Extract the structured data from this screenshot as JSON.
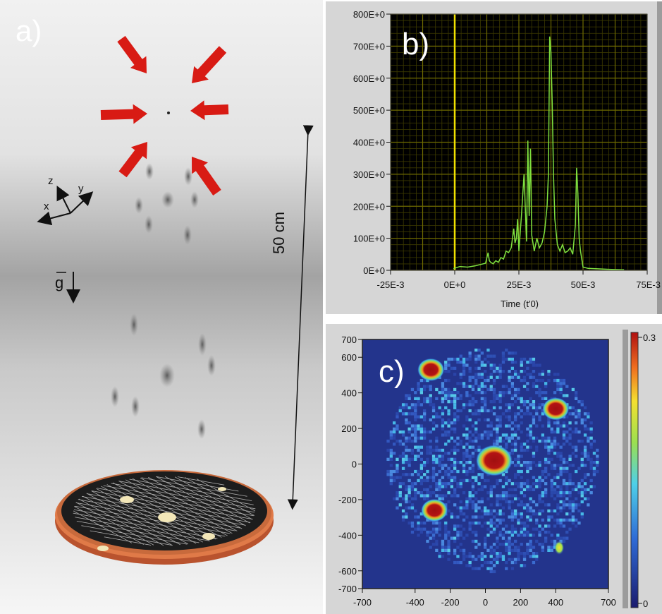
{
  "panel_a": {
    "letter": "a)",
    "axis_z": "z",
    "axis_y": "y",
    "axis_x": "x",
    "gravity": "g",
    "distance_label": "50 cm",
    "arrow_color": "#d81b14",
    "plate_rim_color": "#c8643a"
  },
  "panel_b": {
    "letter": "b)"
  },
  "panel_c": {
    "letter": "c)"
  },
  "chart_data": [
    {
      "type": "line",
      "xlabel": "Time (t'0)",
      "ylabel": "",
      "xlim": [
        -0.025,
        0.075
      ],
      "ylim": [
        0,
        800
      ],
      "x_ticks": [
        "-25E-3",
        "0E+0",
        "25E-3",
        "50E-3",
        "75E-3"
      ],
      "y_ticks": [
        "0E+0",
        "100E+0",
        "200E+0",
        "300E+0",
        "400E+0",
        "500E+0",
        "600E+0",
        "700E+0",
        "800E+0"
      ],
      "grid": true,
      "background": "#000000",
      "grid_color": "#6e6a00",
      "trigger_line_x": 0,
      "trigger_line_color": "#f0e000",
      "series": [
        {
          "color": "#7ee040",
          "x": [
            -0.0005,
            0.002,
            0.005,
            0.008,
            0.01,
            0.012,
            0.013,
            0.0135,
            0.014,
            0.015,
            0.016,
            0.017,
            0.018,
            0.019,
            0.02,
            0.021,
            0.022,
            0.023,
            0.0235,
            0.024,
            0.0245,
            0.025,
            0.026,
            0.027,
            0.028,
            0.0285,
            0.029,
            0.0295,
            0.03,
            0.031,
            0.032,
            0.033,
            0.034,
            0.035,
            0.036,
            0.0365,
            0.037,
            0.0375,
            0.038,
            0.0385,
            0.039,
            0.04,
            0.041,
            0.042,
            0.043,
            0.044,
            0.045,
            0.046,
            0.047,
            0.0475,
            0.048,
            0.0485,
            0.049,
            0.05,
            0.052,
            0.055,
            0.06,
            0.065,
            0.066
          ],
          "y": [
            5,
            12,
            10,
            14,
            18,
            22,
            55,
            30,
            25,
            20,
            30,
            25,
            40,
            35,
            60,
            55,
            70,
            130,
            85,
            100,
            160,
            60,
            170,
            300,
            90,
            405,
            170,
            380,
            110,
            60,
            100,
            70,
            85,
            120,
            200,
            300,
            730,
            680,
            520,
            300,
            160,
            80,
            60,
            80,
            55,
            60,
            70,
            50,
            140,
            320,
            240,
            100,
            60,
            10,
            6,
            5,
            3,
            2,
            2
          ]
        }
      ]
    },
    {
      "type": "heatmap",
      "xlim": [
        -700,
        700
      ],
      "ylim": [
        -700,
        700
      ],
      "x_ticks": [
        "-700",
        "-400",
        "-200",
        "0",
        "200",
        "400",
        "700"
      ],
      "y_ticks": [
        "700",
        "600",
        "400",
        "200",
        "0",
        "-200",
        "-400",
        "-600",
        "-700"
      ],
      "colorbar_ticks": [
        "0.3",
        "0"
      ],
      "colorbar_range": [
        0,
        0.3
      ],
      "background_color": "#23348c",
      "hotspots": [
        {
          "x": 50,
          "y": 20,
          "intensity": 0.3
        },
        {
          "x": -310,
          "y": 530,
          "intensity": 0.3
        },
        {
          "x": 400,
          "y": 310,
          "intensity": 0.3
        },
        {
          "x": -290,
          "y": -260,
          "intensity": 0.3
        },
        {
          "x": 420,
          "y": -470,
          "intensity": 0.18
        }
      ]
    }
  ]
}
